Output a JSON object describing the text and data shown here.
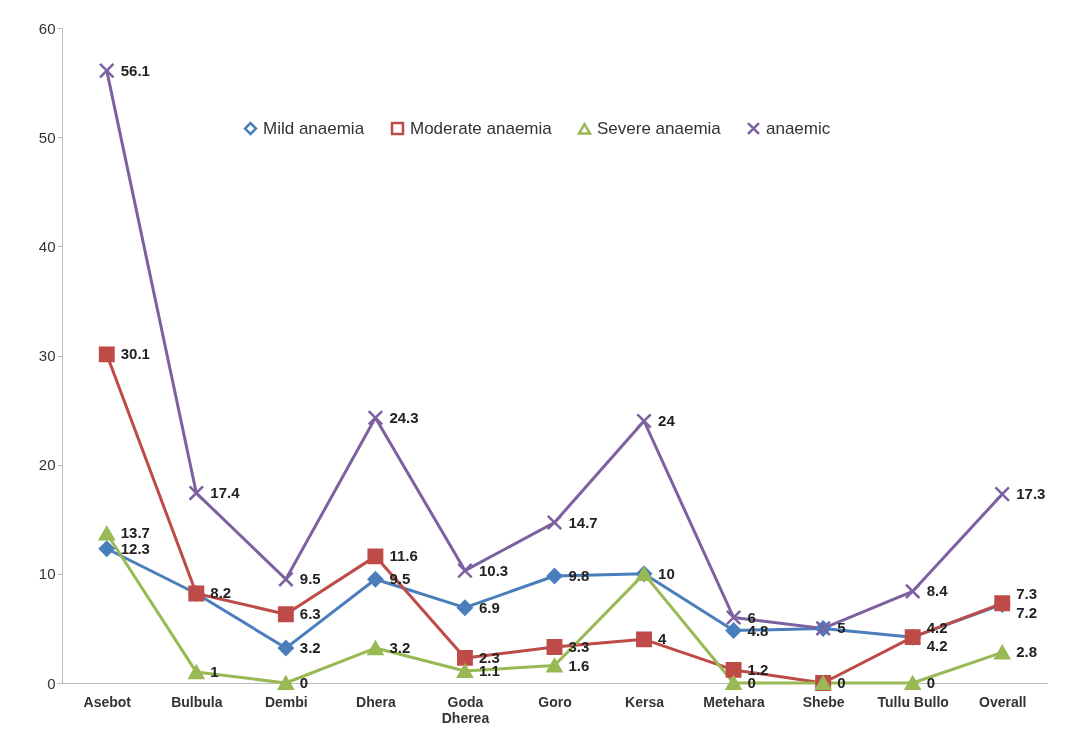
{
  "chart_data": {
    "type": "line",
    "categories": [
      "Asebot",
      "Bulbula",
      "Dembi",
      "Dhera",
      "Goda\nDherea",
      "Goro",
      "Kersa",
      "Metehara",
      "Shebe",
      "Tullu Bullo",
      "Overall"
    ],
    "series": [
      {
        "name": "Mild anaemia",
        "color": "#4a7ebb",
        "marker": "diamond",
        "values": [
          12.3,
          8.2,
          3.2,
          9.5,
          6.9,
          9.8,
          10,
          4.8,
          5,
          4.2,
          7.2
        ],
        "value_labels": [
          "12.3",
          null,
          "3.2",
          "9.5",
          "6.9",
          "9.8",
          "10",
          "4.8",
          null,
          "4.2",
          "7.2"
        ]
      },
      {
        "name": "Moderate anaemia",
        "color": "#be4b48",
        "marker": "square",
        "values": [
          30.1,
          8.2,
          6.3,
          11.6,
          2.3,
          3.3,
          4,
          1.2,
          0,
          4.2,
          7.3
        ],
        "value_labels": [
          "30.1",
          "8.2",
          "6.3",
          "11.6",
          "2.3",
          "3.3",
          "4",
          "1.2",
          null,
          "4.2",
          "7.3"
        ]
      },
      {
        "name": "Severe anaemia",
        "color": "#98b954",
        "marker": "triangle",
        "values": [
          13.7,
          1,
          0,
          3.2,
          1.1,
          1.6,
          10,
          0,
          0,
          0,
          2.8
        ],
        "value_labels": [
          "13.7",
          "1",
          "0",
          "3.2",
          "1.1",
          "1.6",
          null,
          "0",
          "0",
          "0",
          "2.8"
        ]
      },
      {
        "name": "anaemic",
        "color": "#7d60a0",
        "marker": "cross",
        "values": [
          56.1,
          17.4,
          9.5,
          24.3,
          10.3,
          14.7,
          24,
          6,
          5,
          8.4,
          17.3
        ],
        "value_labels": [
          "56.1",
          "17.4",
          "9.5",
          "24.3",
          "10.3",
          "14.7",
          "24",
          "6",
          "5",
          "8.4",
          "17.3"
        ]
      }
    ],
    "ylim": [
      0,
      60
    ],
    "yticks": [
      0,
      10,
      20,
      30,
      40,
      50,
      60
    ],
    "grid": false,
    "legend": "top right"
  }
}
